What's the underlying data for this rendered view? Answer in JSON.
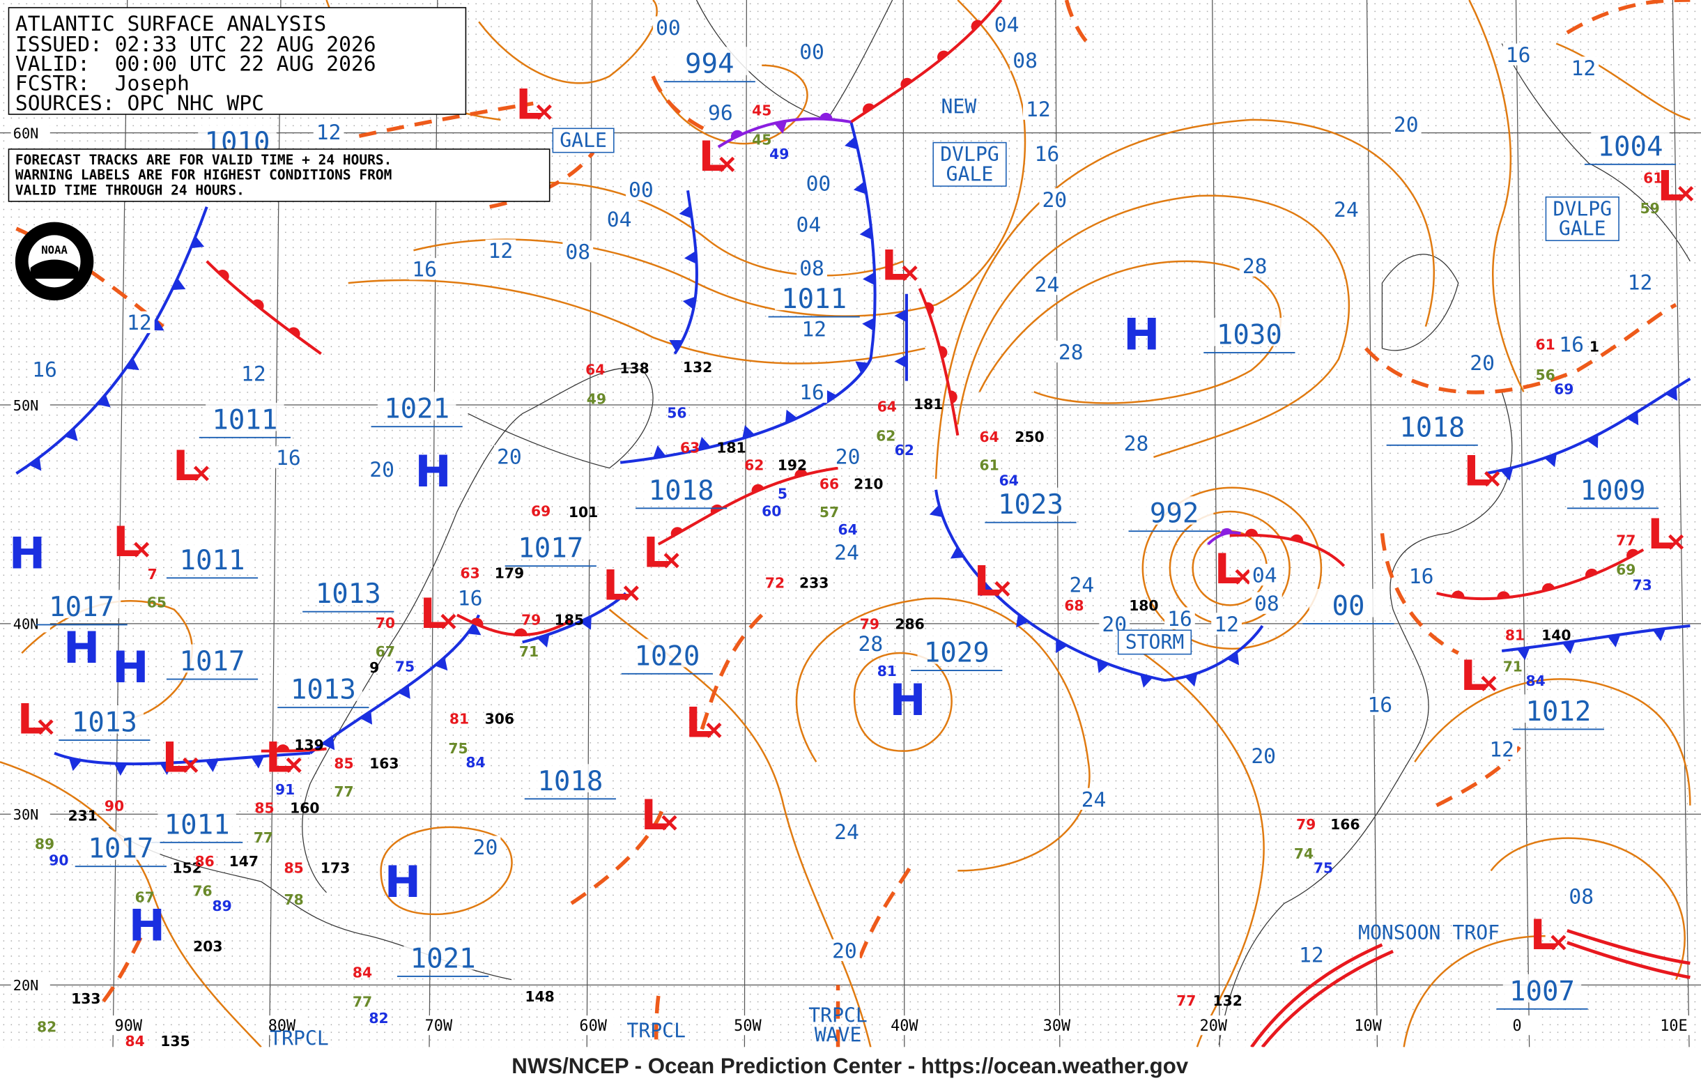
{
  "header": {
    "title": "ATLANTIC SURFACE ANALYSIS",
    "lines": [
      "ISSUED: 02:33 UTC 22 AUG 2026",
      "VALID:  00:00 UTC 22 AUG 2026",
      "FCSTR:  Joseph",
      "SOURCES: OPC NHC WPC"
    ]
  },
  "note": [
    "FORECAST TRACKS ARE FOR VALID TIME + 24 HOURS.",
    "WARNING LABELS ARE FOR HIGHEST CONDITIONS FROM",
    "VALID TIME THROUGH 24 HOURS."
  ],
  "logo_text": "NOAA",
  "footer": "NWS/NCEP - Ocean Prediction Center - https://ocean.weather.gov",
  "lat_labels": [
    "60N",
    "50N",
    "40N",
    "30N",
    "20N"
  ],
  "lon_labels": [
    "90W",
    "80W",
    "70W",
    "60W",
    "50W",
    "40W",
    "30W",
    "20W",
    "10W",
    "0",
    "10E"
  ],
  "high_symbol": "H",
  "low_symbol": "L",
  "pressure_labels": [
    "994",
    "1010",
    "1011",
    "1030",
    "1021",
    "1011",
    "1018",
    "1018",
    "1023",
    "1009",
    "992",
    "1011",
    "1017",
    "1013",
    "1017",
    "00",
    "1017",
    "1020",
    "1029",
    "1013",
    "1013",
    "1012",
    "1018",
    "1011",
    "1017",
    "1021",
    "1007",
    "1004"
  ],
  "isobar_labels": [
    "00",
    "00",
    "04",
    "08",
    "12",
    "96",
    "12",
    "16",
    "12",
    "20",
    "16",
    "00",
    "00",
    "20",
    "04",
    "04",
    "24",
    "12",
    "08",
    "08",
    "28",
    "16",
    "24",
    "12",
    "12",
    "12",
    "28",
    "20",
    "16",
    "12",
    "16",
    "28",
    "16",
    "20",
    "20",
    "20",
    "24",
    "24",
    "16",
    "08",
    "16",
    "20",
    "16",
    "12",
    "28",
    "16",
    "20",
    "12",
    "24",
    "20",
    "24",
    "08",
    "20",
    "12",
    "04",
    "16"
  ],
  "features": [
    {
      "lines": [
        "GALE"
      ]
    },
    {
      "lines": [
        "NEW"
      ]
    },
    {
      "lines": [
        "DVLPG",
        "GALE"
      ]
    },
    {
      "lines": [
        "DVLPG",
        "GALE"
      ]
    },
    {
      "lines": [
        "STORM"
      ]
    },
    {
      "lines": [
        "MONSOON TROF"
      ]
    },
    {
      "lines": [
        "TRPCL"
      ]
    },
    {
      "lines": [
        "TRPCL"
      ]
    },
    {
      "lines": [
        "TRPCL",
        "WAVE"
      ]
    }
  ],
  "station_pressures": [
    "138",
    "132",
    "181",
    "192",
    "210",
    "181",
    "250",
    "101",
    "179",
    "185",
    "233",
    "286",
    "180",
    "306",
    "163",
    "139",
    "160",
    "231",
    "152",
    "147",
    "173",
    "203",
    "133",
    "135",
    "148",
    "132",
    "166",
    "140",
    "9",
    "1"
  ],
  "station_temps": [
    "64",
    "45",
    "64",
    "63",
    "62",
    "66",
    "64",
    "69",
    "63",
    "79",
    "72",
    "79",
    "68",
    "70",
    "81",
    "85",
    "85",
    "90",
    "86",
    "85",
    "84",
    "84",
    "77",
    "79",
    "81",
    "77",
    "61",
    "7",
    "61"
  ],
  "station_dewpoints": [
    "49",
    "45",
    "62",
    "61",
    "57",
    "71",
    "67",
    "75",
    "77",
    "77",
    "89",
    "67",
    "76",
    "78",
    "77",
    "82",
    "74",
    "71",
    "69",
    "65",
    "56",
    "59"
  ],
  "station_other": [
    "49",
    "56",
    "62",
    "60",
    "5",
    "64",
    "75",
    "81",
    "84",
    "91",
    "90",
    "89",
    "82",
    "75",
    "84",
    "73",
    "69",
    "64"
  ]
}
